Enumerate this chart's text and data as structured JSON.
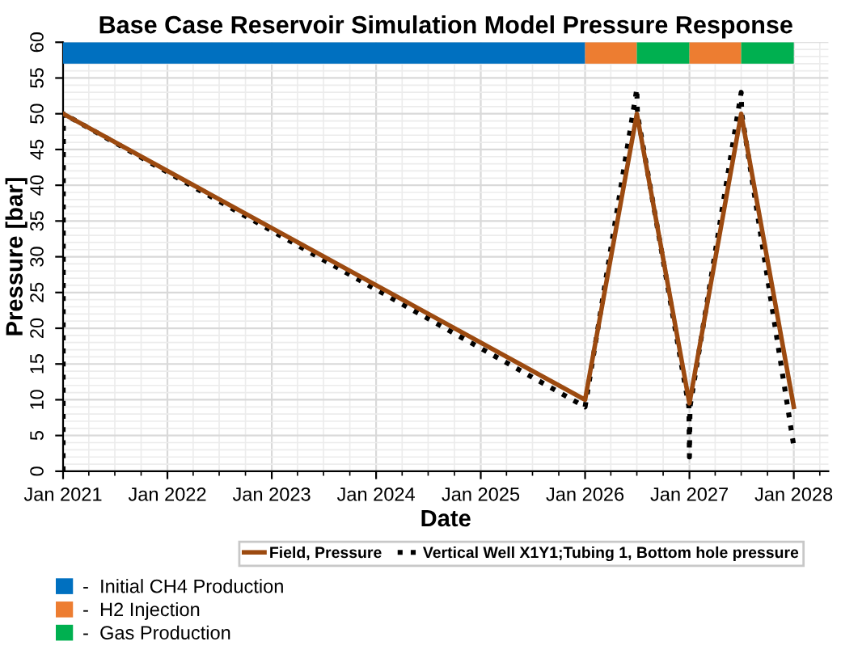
{
  "chart_data": {
    "type": "line",
    "title": "Base Case Reservoir Simulation Model Pressure Response",
    "xlabel": "Date",
    "ylabel": "Pressure [bar]",
    "xlim": [
      "2021-01-01",
      "2028-05-01"
    ],
    "ylim": [
      0,
      60
    ],
    "xticks": [
      {
        "value": "2021-01-01",
        "label": "Jan 2021"
      },
      {
        "value": "2022-01-01",
        "label": "Jan 2022"
      },
      {
        "value": "2023-01-01",
        "label": "Jan 2023"
      },
      {
        "value": "2024-01-01",
        "label": "Jan 2024"
      },
      {
        "value": "2025-01-01",
        "label": "Jan 2025"
      },
      {
        "value": "2026-01-01",
        "label": "Jan 2026"
      },
      {
        "value": "2027-01-01",
        "label": "Jan 2027"
      },
      {
        "value": "2028-01-01",
        "label": "Jan 2028"
      }
    ],
    "yticks": [
      0,
      5,
      10,
      15,
      20,
      25,
      30,
      35,
      40,
      45,
      50,
      55,
      60
    ],
    "grid": true,
    "legend": "bottom",
    "series": [
      {
        "name": "Field, Pressure",
        "color": "#9c4a10",
        "line_style": "solid",
        "x": [
          "2021-01-01",
          "2026-01-01",
          "2026-07-01",
          "2027-01-01",
          "2027-07-01",
          "2028-01-01"
        ],
        "values": [
          50,
          10,
          50,
          9.5,
          50,
          9
        ]
      },
      {
        "name": "Vertical Well X1Y1;Tubing 1, Bottom hole pressure",
        "color": "#000000",
        "line_style": "dotted",
        "x": [
          "2021-01-01",
          "2021-01-02",
          "2026-01-01",
          "2026-07-01",
          "2026-07-03",
          "2026-12-30",
          "2027-01-01",
          "2027-01-03",
          "2027-07-01",
          "2027-07-03",
          "2028-01-01"
        ],
        "values": [
          0,
          50,
          9,
          53.5,
          50,
          9,
          2,
          9,
          53,
          50,
          3.5
        ]
      }
    ],
    "bands": [
      {
        "axis": "x",
        "from": "2021-01-01",
        "to": "2026-01-01",
        "label": "-  Initial CH4 Production",
        "color": "#0070c0"
      },
      {
        "axis": "x",
        "from": "2026-01-01",
        "to": "2026-07-01",
        "label": "-  H2 Injection",
        "color": "#ed7d31"
      },
      {
        "axis": "x",
        "from": "2026-07-01",
        "to": "2027-01-01",
        "label": "-  Gas Production",
        "color": "#00b050"
      },
      {
        "axis": "x",
        "from": "2027-01-01",
        "to": "2027-07-01",
        "color": "#ed7d31"
      },
      {
        "axis": "x",
        "from": "2027-07-01",
        "to": "2028-01-01",
        "color": "#00b050"
      }
    ]
  }
}
